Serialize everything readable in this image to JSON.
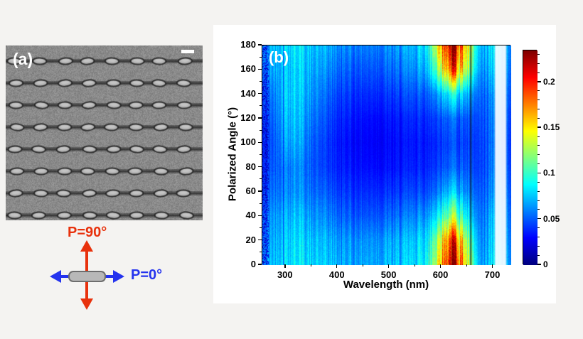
{
  "panel_a": {
    "label": "(a)"
  },
  "panel_b": {
    "label": "(b)"
  },
  "polarization": {
    "p90_label": "P=90°",
    "p0_label": "P=0°",
    "p90_color": "#e8310c",
    "p0_color": "#2433ee",
    "rod_color": "#b8b8b8",
    "rod_border_color": "#6d6d6d"
  },
  "chart_data": {
    "type": "heatmap",
    "title": "",
    "xlabel": "Wavelength (nm)",
    "ylabel": "Polarized Angle (°)",
    "x_range": [
      255,
      735
    ],
    "y_range": [
      0,
      180
    ],
    "x_ticks": [
      300,
      400,
      500,
      600,
      700
    ],
    "x_minor_ticks": [
      350,
      450,
      550,
      650
    ],
    "y_ticks": [
      0,
      20,
      40,
      60,
      80,
      100,
      120,
      140,
      160,
      180
    ],
    "y_minor_step": 10,
    "colormap": "jet",
    "grid": false,
    "colorbar": {
      "min": 0,
      "max": 0.235,
      "tick_values": [
        0.2,
        0.15,
        0.1,
        0.05,
        0
      ],
      "tick_labels": [
        "0.2",
        "0.15",
        "0.1",
        "0.05",
        "0"
      ],
      "minor_step": 0.01,
      "position": "right"
    },
    "wavelengths_nm": [
      250,
      275,
      300,
      325,
      350,
      375,
      400,
      425,
      450,
      475,
      500,
      525,
      550,
      575,
      600,
      625,
      650,
      675,
      700,
      720
    ],
    "angles_deg": [
      0,
      20,
      40,
      60,
      80,
      100,
      120,
      140,
      160,
      180
    ],
    "values": [
      [
        0.055,
        0.075,
        0.085,
        0.085,
        0.08,
        0.075,
        0.073,
        0.07,
        0.07,
        0.07,
        0.072,
        0.075,
        0.08,
        0.1,
        0.17,
        0.235,
        0.14,
        0.06,
        0.085,
        0.07
      ],
      [
        0.05,
        0.07,
        0.082,
        0.082,
        0.075,
        0.07,
        0.068,
        0.065,
        0.065,
        0.065,
        0.067,
        0.07,
        0.075,
        0.09,
        0.15,
        0.21,
        0.12,
        0.055,
        0.08,
        0.065
      ],
      [
        0.045,
        0.065,
        0.075,
        0.075,
        0.065,
        0.06,
        0.055,
        0.052,
        0.05,
        0.05,
        0.052,
        0.055,
        0.06,
        0.07,
        0.1,
        0.13,
        0.085,
        0.05,
        0.075,
        0.06
      ],
      [
        0.04,
        0.055,
        0.065,
        0.065,
        0.055,
        0.05,
        0.045,
        0.042,
        0.04,
        0.04,
        0.04,
        0.042,
        0.045,
        0.05,
        0.065,
        0.08,
        0.06,
        0.045,
        0.065,
        0.055
      ],
      [
        0.035,
        0.05,
        0.062,
        0.062,
        0.05,
        0.042,
        0.038,
        0.035,
        0.033,
        0.032,
        0.032,
        0.034,
        0.036,
        0.04,
        0.048,
        0.055,
        0.048,
        0.04,
        0.06,
        0.05
      ],
      [
        0.035,
        0.048,
        0.072,
        0.07,
        0.052,
        0.042,
        0.036,
        0.032,
        0.03,
        0.029,
        0.03,
        0.032,
        0.034,
        0.037,
        0.043,
        0.048,
        0.043,
        0.04,
        0.058,
        0.048
      ],
      [
        0.038,
        0.052,
        0.078,
        0.075,
        0.058,
        0.047,
        0.04,
        0.036,
        0.033,
        0.032,
        0.033,
        0.035,
        0.038,
        0.042,
        0.05,
        0.055,
        0.048,
        0.043,
        0.06,
        0.05
      ],
      [
        0.042,
        0.058,
        0.082,
        0.078,
        0.065,
        0.053,
        0.047,
        0.043,
        0.04,
        0.04,
        0.041,
        0.044,
        0.048,
        0.055,
        0.075,
        0.095,
        0.07,
        0.048,
        0.065,
        0.055
      ],
      [
        0.05,
        0.068,
        0.08,
        0.08,
        0.07,
        0.062,
        0.056,
        0.052,
        0.05,
        0.05,
        0.052,
        0.056,
        0.062,
        0.08,
        0.14,
        0.2,
        0.125,
        0.058,
        0.078,
        0.062
      ],
      [
        0.055,
        0.075,
        0.085,
        0.085,
        0.075,
        0.07,
        0.065,
        0.062,
        0.06,
        0.06,
        0.062,
        0.066,
        0.072,
        0.095,
        0.18,
        0.235,
        0.15,
        0.065,
        0.085,
        0.068
      ]
    ],
    "features": {
      "dark_vertical_line_nm": 657,
      "white_band_nm": [
        702,
        727
      ],
      "hotspots": [
        {
          "wavelength_nm": 625,
          "angle_deg": 10,
          "peak": 0.235
        },
        {
          "wavelength_nm": 625,
          "angle_deg": 175,
          "peak": 0.235
        }
      ]
    }
  }
}
